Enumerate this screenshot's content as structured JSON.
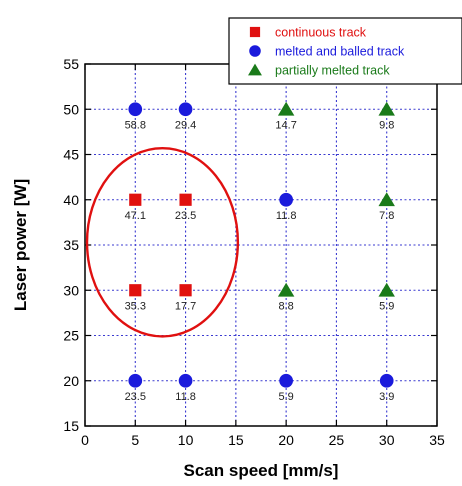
{
  "chart_data": {
    "type": "scatter",
    "xlabel": "Scan speed [mm/s]",
    "ylabel": "Laser power [W]",
    "xlim": [
      0,
      35
    ],
    "ylim": [
      15,
      55
    ],
    "x_ticks": [
      0,
      5,
      10,
      15,
      20,
      25,
      30,
      35
    ],
    "y_ticks": [
      15,
      20,
      25,
      30,
      35,
      40,
      45,
      50,
      55
    ],
    "grid": "dotted",
    "legend_position": "top-right",
    "series": [
      {
        "name": "continuous track",
        "marker": "square",
        "color": "#e01010",
        "points": [
          {
            "x": 5,
            "y": 40,
            "label": "47.1"
          },
          {
            "x": 10,
            "y": 40,
            "label": "23.5"
          },
          {
            "x": 5,
            "y": 30,
            "label": "35.3"
          },
          {
            "x": 10,
            "y": 30,
            "label": "17.7"
          }
        ]
      },
      {
        "name": "melted and balled track",
        "marker": "circle",
        "color": "#1a1adc",
        "points": [
          {
            "x": 5,
            "y": 50,
            "label": "58.8"
          },
          {
            "x": 10,
            "y": 50,
            "label": "29.4"
          },
          {
            "x": 20,
            "y": 40,
            "label": "11.8"
          },
          {
            "x": 5,
            "y": 20,
            "label": "23.5"
          },
          {
            "x": 10,
            "y": 20,
            "label": "11.8"
          },
          {
            "x": 20,
            "y": 20,
            "label": "5.9"
          },
          {
            "x": 30,
            "y": 20,
            "label": "3.9"
          }
        ]
      },
      {
        "name": "partially melted track",
        "marker": "triangle",
        "color": "#1a7a1a",
        "points": [
          {
            "x": 20,
            "y": 50,
            "label": "14.7"
          },
          {
            "x": 30,
            "y": 50,
            "label": "9.8"
          },
          {
            "x": 30,
            "y": 40,
            "label": "7.8"
          },
          {
            "x": 20,
            "y": 30,
            "label": "8.8"
          },
          {
            "x": 30,
            "y": 30,
            "label": "5.9"
          }
        ]
      }
    ],
    "annotations": [
      {
        "type": "ellipse",
        "color": "#e01010",
        "center_x": 7.7,
        "center_y": 35.3,
        "radius_x": 7.5,
        "radius_y": 10.4
      }
    ]
  }
}
